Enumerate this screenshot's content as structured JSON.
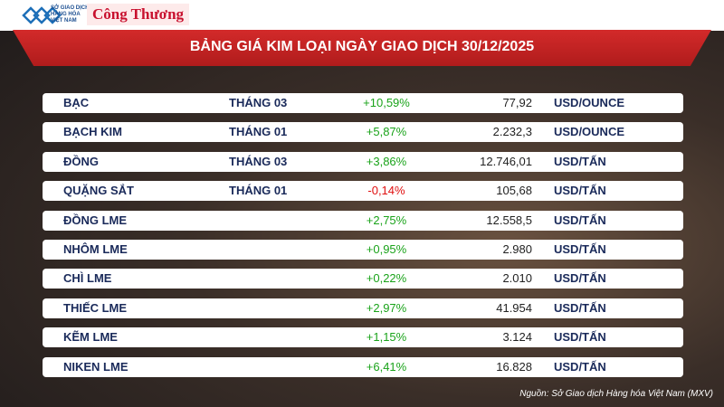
{
  "header": {
    "logo_lines": [
      "SỞ GIAO DỊCH",
      "HÀNG HÓA",
      "VIỆT NAM"
    ],
    "brand": "Công Thương"
  },
  "title": "BẢNG GIÁ KIM LOẠI NGÀY GIAO DỊCH 30/12/2025",
  "table": {
    "rows": [
      {
        "name": "BẠC",
        "month": "THÁNG 03",
        "change": "+10,59%",
        "price": "77,92",
        "unit": "USD/OUNCE"
      },
      {
        "name": "BẠCH KIM",
        "month": "THÁNG 01",
        "change": "+5,87%",
        "price": "2.232,3",
        "unit": "USD/OUNCE"
      },
      {
        "name": "ĐỒNG",
        "month": "THÁNG 03",
        "change": "+3,86%",
        "price": "12.746,01",
        "unit": "USD/TẤN"
      },
      {
        "name": "QUẶNG SẮT",
        "month": "THÁNG 01",
        "change": "-0,14%",
        "price": "105,68",
        "unit": "USD/TẤN"
      },
      {
        "name": "ĐỒNG LME",
        "change": "+2,75%",
        "price": "12.558,5",
        "unit": "USD/TẤN"
      },
      {
        "name": "NHÔM LME",
        "change": "+0,95%",
        "price": "2.980",
        "unit": "USD/TẤN"
      },
      {
        "name": "CHÌ LME",
        "change": "+0,22%",
        "price": "2.010",
        "unit": "USD/TẤN"
      },
      {
        "name": "THIẾC LME",
        "change": "+2,97%",
        "price": "41.954",
        "unit": "USD/TẤN"
      },
      {
        "name": "KẼM LME",
        "change": "+1,15%",
        "price": "3.124",
        "unit": "USD/TẤN"
      },
      {
        "name": "NIKEN LME",
        "change": "+6,41%",
        "price": "16.828",
        "unit": "USD/TẤN"
      }
    ]
  },
  "source": "Nguồn: Sở Giao dịch Hàng hóa Việt Nam (MXV)"
}
